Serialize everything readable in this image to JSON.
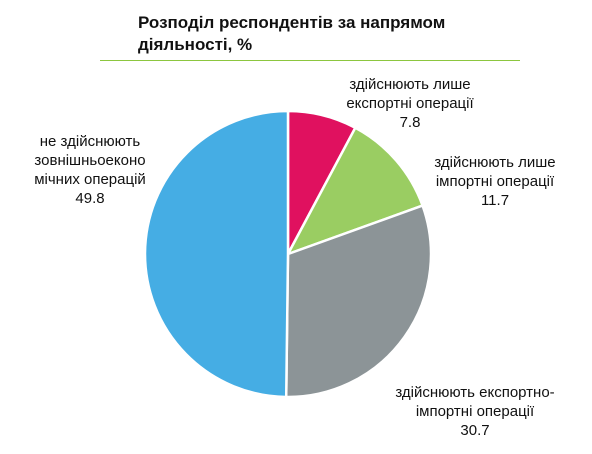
{
  "chart_data": {
    "type": "pie",
    "title": "Розподіл респондентів за напрямом діяльності, %",
    "title_lines": [
      "Розподіл респондентів за напрямом",
      "діяльності, %"
    ],
    "accent_color": "#8cc63f",
    "slices": [
      {
        "label": "здійснюють лише експортні операції",
        "label_lines": [
          "здійснюють лише",
          "експортні операції"
        ],
        "value": 7.8,
        "value_text": "7.8",
        "color": "#e0115f"
      },
      {
        "label": "здійснюють лише імпортні операції",
        "label_lines": [
          "здійснюють лише",
          "імпортні операції"
        ],
        "value": 11.7,
        "value_text": "11.7",
        "color": "#9acd62"
      },
      {
        "label": "здійснюють експортно-імпортні операції",
        "label_lines": [
          "здійснюють експортно-",
          "імпортні операції"
        ],
        "value": 30.7,
        "value_text": "30.7",
        "color": "#8c9497"
      },
      {
        "label": "не здійснюють зовнішньоекономічних операцій",
        "label_lines": [
          "не здійснюють",
          "зовнішньоеконо",
          "мічних операцій"
        ],
        "value": 49.8,
        "value_text": "49.8",
        "color": "#45ade4"
      }
    ]
  }
}
